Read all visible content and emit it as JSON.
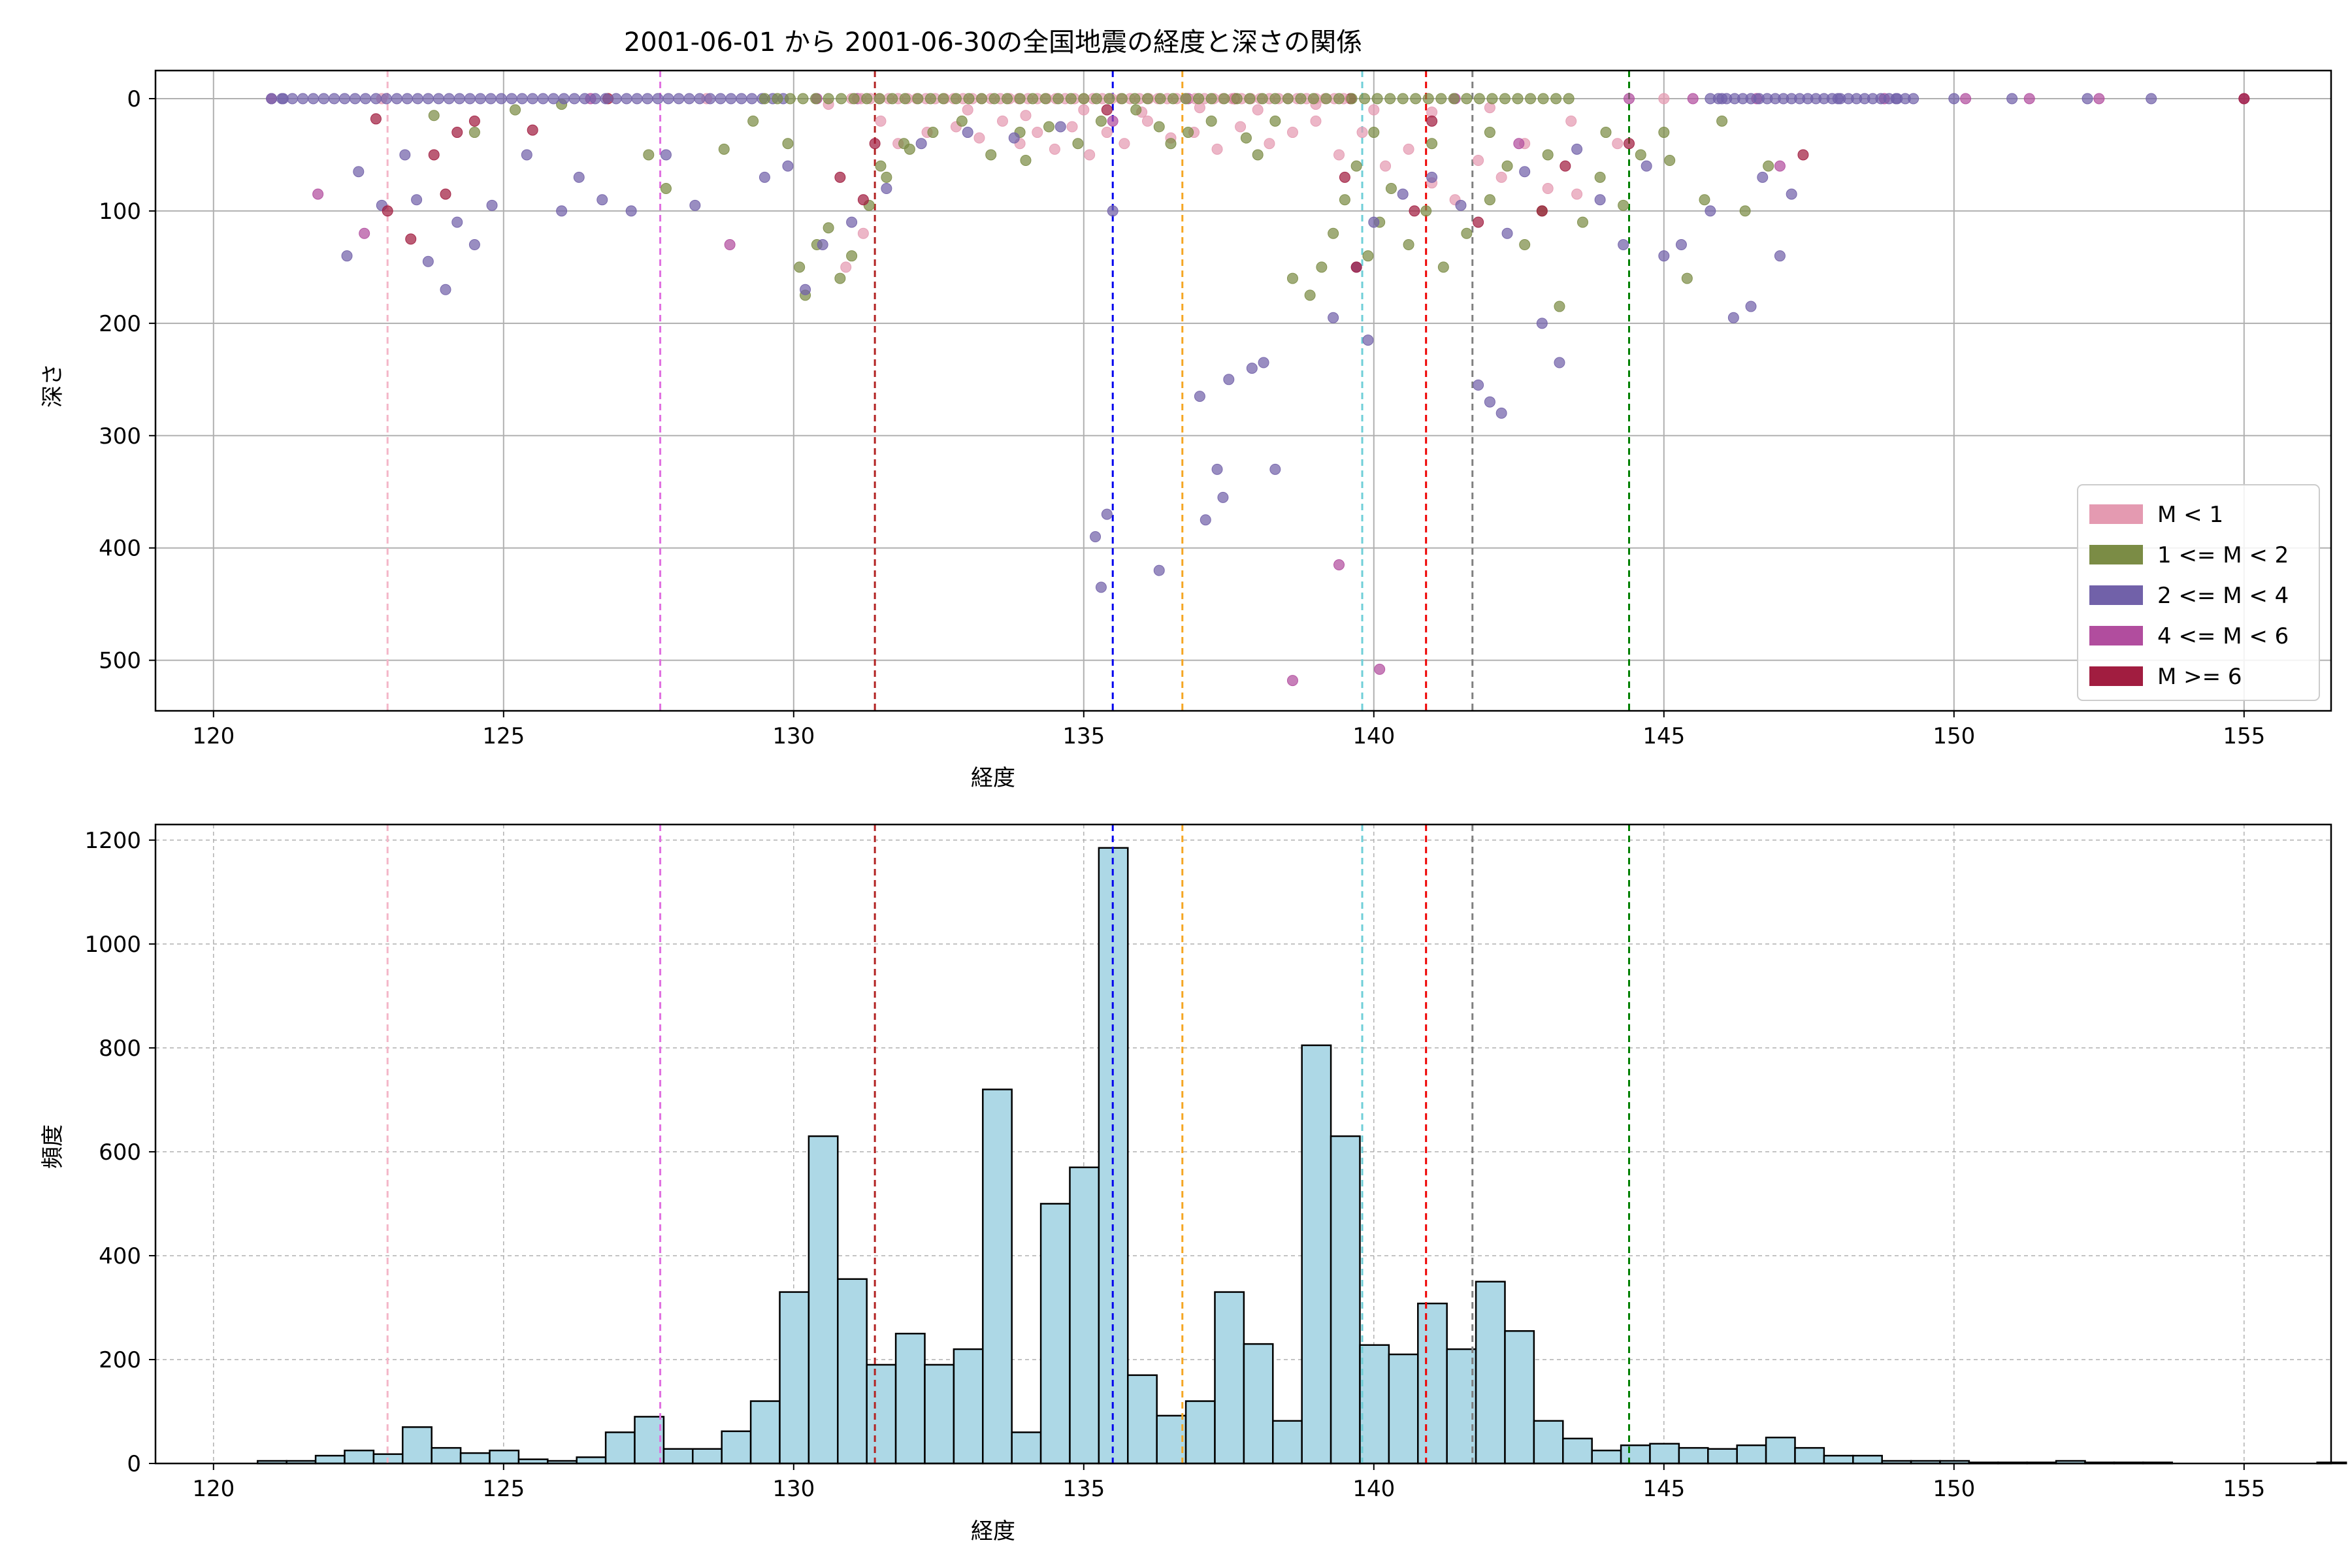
{
  "chart_data": [
    {
      "type": "scatter",
      "title": "2001-06-01 から 2001-06-30の全国地震の経度と深さの関係",
      "xlabel": "経度",
      "ylabel": "深さ",
      "xlim": [
        119,
        156.5
      ],
      "ylim": [
        545,
        -25
      ],
      "y_inverted": true,
      "grid": true,
      "xticks": [
        120,
        125,
        130,
        135,
        140,
        145,
        150,
        155
      ],
      "yticks": [
        0,
        100,
        200,
        300,
        400,
        500
      ],
      "legend_position": "lower-right",
      "series": [
        {
          "name": "M < 1",
          "color": "#e49ab1",
          "points": [
            [
              122.9,
              0
            ],
            [
              128.5,
              0
            ],
            [
              130.6,
              5
            ],
            [
              131.5,
              20
            ],
            [
              131.8,
              40
            ],
            [
              132.3,
              30
            ],
            [
              132.8,
              25
            ],
            [
              133.2,
              35
            ],
            [
              133.6,
              20
            ],
            [
              133.9,
              40
            ],
            [
              134.2,
              30
            ],
            [
              134.5,
              45
            ],
            [
              134.8,
              25
            ],
            [
              135.1,
              50
            ],
            [
              135.4,
              30
            ],
            [
              135.7,
              40
            ],
            [
              136.1,
              20
            ],
            [
              136.5,
              35
            ],
            [
              136.9,
              30
            ],
            [
              137.3,
              45
            ],
            [
              137.7,
              25
            ],
            [
              138.2,
              40
            ],
            [
              138.6,
              30
            ],
            [
              139.0,
              20
            ],
            [
              139.4,
              50
            ],
            [
              139.8,
              30
            ],
            [
              140.2,
              60
            ],
            [
              140.6,
              45
            ],
            [
              141.0,
              75
            ],
            [
              141.4,
              90
            ],
            [
              141.8,
              55
            ],
            [
              142.2,
              70
            ],
            [
              142.6,
              40
            ],
            [
              143.0,
              80
            ],
            [
              143.4,
              20
            ],
            [
              131.2,
              120
            ],
            [
              130.9,
              150
            ],
            [
              133.0,
              10
            ],
            [
              134.0,
              15
            ],
            [
              135.0,
              10
            ],
            [
              136.0,
              12
            ],
            [
              137.0,
              8
            ],
            [
              138.0,
              10
            ],
            [
              139.0,
              5
            ],
            [
              140.0,
              10
            ],
            [
              141.0,
              12
            ],
            [
              142.0,
              8
            ],
            [
              143.5,
              85
            ],
            [
              144.2,
              40
            ],
            [
              145.0,
              0
            ]
          ]
        },
        {
          "name": "1 <= M < 2",
          "color": "#7b8c45",
          "points": [
            [
              123.8,
              15
            ],
            [
              124.5,
              30
            ],
            [
              125.2,
              10
            ],
            [
              126.0,
              5
            ],
            [
              127.5,
              50
            ],
            [
              127.8,
              80
            ],
            [
              128.8,
              45
            ],
            [
              129.3,
              20
            ],
            [
              129.9,
              40
            ],
            [
              130.1,
              150
            ],
            [
              130.2,
              175
            ],
            [
              130.4,
              130
            ],
            [
              130.6,
              115
            ],
            [
              130.8,
              160
            ],
            [
              131.0,
              140
            ],
            [
              131.3,
              95
            ],
            [
              131.6,
              70
            ],
            [
              131.9,
              40
            ],
            [
              132.4,
              30
            ],
            [
              132.9,
              20
            ],
            [
              133.4,
              50
            ],
            [
              133.9,
              30
            ],
            [
              134.4,
              25
            ],
            [
              134.9,
              40
            ],
            [
              135.3,
              20
            ],
            [
              135.9,
              10
            ],
            [
              136.3,
              25
            ],
            [
              136.8,
              30
            ],
            [
              137.2,
              20
            ],
            [
              137.8,
              35
            ],
            [
              138.3,
              20
            ],
            [
              138.6,
              160
            ],
            [
              138.9,
              175
            ],
            [
              139.1,
              150
            ],
            [
              139.3,
              120
            ],
            [
              139.5,
              90
            ],
            [
              139.7,
              60
            ],
            [
              139.9,
              140
            ],
            [
              140.1,
              110
            ],
            [
              140.3,
              80
            ],
            [
              140.6,
              130
            ],
            [
              140.9,
              100
            ],
            [
              141.2,
              150
            ],
            [
              141.6,
              120
            ],
            [
              142.0,
              90
            ],
            [
              142.3,
              60
            ],
            [
              142.6,
              130
            ],
            [
              142.9,
              100
            ],
            [
              143.2,
              185
            ],
            [
              143.6,
              110
            ],
            [
              143.9,
              70
            ],
            [
              144.3,
              95
            ],
            [
              144.6,
              50
            ],
            [
              145.1,
              55
            ],
            [
              145.4,
              160
            ],
            [
              145.7,
              90
            ],
            [
              146.0,
              20
            ],
            [
              146.4,
              100
            ],
            [
              146.8,
              60
            ],
            [
              131.5,
              60
            ],
            [
              132.0,
              45
            ],
            [
              134.0,
              55
            ],
            [
              136.5,
              40
            ],
            [
              138.0,
              50
            ],
            [
              140.0,
              30
            ],
            [
              141.0,
              40
            ],
            [
              142.0,
              30
            ],
            [
              143.0,
              50
            ],
            [
              144.0,
              30
            ],
            [
              145.0,
              30
            ]
          ]
        },
        {
          "name": "2 <= M < 4",
          "color": "#7161a9",
          "points": [
            [
              121.2,
              0
            ],
            [
              122.3,
              140
            ],
            [
              122.5,
              65
            ],
            [
              122.9,
              95
            ],
            [
              123.3,
              50
            ],
            [
              123.5,
              90
            ],
            [
              123.7,
              145
            ],
            [
              124.0,
              170
            ],
            [
              124.2,
              110
            ],
            [
              124.5,
              130
            ],
            [
              124.8,
              95
            ],
            [
              125.4,
              50
            ],
            [
              126.0,
              100
            ],
            [
              126.3,
              70
            ],
            [
              126.7,
              90
            ],
            [
              127.2,
              100
            ],
            [
              127.8,
              50
            ],
            [
              128.3,
              95
            ],
            [
              129.5,
              70
            ],
            [
              129.9,
              60
            ],
            [
              130.2,
              170
            ],
            [
              130.5,
              130
            ],
            [
              131.0,
              110
            ],
            [
              131.6,
              80
            ],
            [
              132.2,
              40
            ],
            [
              133.0,
              30
            ],
            [
              133.8,
              35
            ],
            [
              134.6,
              25
            ],
            [
              135.2,
              390
            ],
            [
              135.3,
              435
            ],
            [
              135.4,
              370
            ],
            [
              135.5,
              100
            ],
            [
              136.3,
              420
            ],
            [
              137.1,
              375
            ],
            [
              137.3,
              330
            ],
            [
              137.4,
              355
            ],
            [
              137.0,
              265
            ],
            [
              137.5,
              250
            ],
            [
              137.9,
              240
            ],
            [
              138.1,
              235
            ],
            [
              138.3,
              330
            ],
            [
              139.3,
              195
            ],
            [
              139.7,
              150
            ],
            [
              139.9,
              215
            ],
            [
              140.0,
              110
            ],
            [
              140.5,
              85
            ],
            [
              141.0,
              70
            ],
            [
              141.5,
              95
            ],
            [
              141.8,
              255
            ],
            [
              142.0,
              270
            ],
            [
              142.2,
              280
            ],
            [
              142.3,
              120
            ],
            [
              142.6,
              65
            ],
            [
              142.9,
              200
            ],
            [
              143.2,
              235
            ],
            [
              143.5,
              45
            ],
            [
              143.9,
              90
            ],
            [
              144.3,
              130
            ],
            [
              144.7,
              60
            ],
            [
              145.0,
              140
            ],
            [
              145.3,
              130
            ],
            [
              145.8,
              100
            ],
            [
              146.2,
              195
            ],
            [
              146.5,
              185
            ],
            [
              146.7,
              70
            ],
            [
              147.0,
              140
            ],
            [
              147.2,
              85
            ],
            [
              146.0,
              0
            ],
            [
              148.0,
              0
            ],
            [
              149.0,
              0
            ],
            [
              150.0,
              0
            ],
            [
              151.0,
              0
            ],
            [
              152.3,
              0
            ],
            [
              153.4,
              0
            ]
          ]
        },
        {
          "name": "4 <= M < 6",
          "color": "#b14d9e",
          "points": [
            [
              121.0,
              0
            ],
            [
              121.8,
              85
            ],
            [
              122.6,
              120
            ],
            [
              126.5,
              0
            ],
            [
              128.9,
              130
            ],
            [
              130.4,
              0
            ],
            [
              131.1,
              0
            ],
            [
              135.5,
              20
            ],
            [
              136.8,
              0
            ],
            [
              138.6,
              518
            ],
            [
              139.4,
              415
            ],
            [
              140.1,
              508
            ],
            [
              141.4,
              0
            ],
            [
              142.5,
              40
            ],
            [
              144.4,
              0
            ],
            [
              145.5,
              0
            ],
            [
              146.6,
              0
            ],
            [
              147.0,
              60
            ],
            [
              148.8,
              0
            ],
            [
              150.2,
              0
            ],
            [
              151.3,
              0
            ],
            [
              152.5,
              0
            ],
            [
              155.0,
              0
            ]
          ]
        },
        {
          "name": "M >= 6",
          "color": "#a11d40",
          "points": [
            [
              122.8,
              18
            ],
            [
              123.0,
              100
            ],
            [
              123.4,
              125
            ],
            [
              123.8,
              50
            ],
            [
              124.0,
              85
            ],
            [
              124.2,
              30
            ],
            [
              124.5,
              20
            ],
            [
              125.5,
              28
            ],
            [
              126.8,
              0
            ],
            [
              130.8,
              70
            ],
            [
              131.2,
              90
            ],
            [
              131.4,
              40
            ],
            [
              135.4,
              10
            ],
            [
              137.6,
              0
            ],
            [
              139.5,
              70
            ],
            [
              139.6,
              0
            ],
            [
              139.7,
              150
            ],
            [
              140.7,
              100
            ],
            [
              141.0,
              20
            ],
            [
              141.8,
              110
            ],
            [
              142.9,
              100
            ],
            [
              143.3,
              60
            ],
            [
              144.4,
              40
            ],
            [
              147.4,
              50
            ],
            [
              155.0,
              0
            ]
          ]
        }
      ],
      "reference_lines": [
        {
          "x": 123.0,
          "color": "#f4b6c8"
        },
        {
          "x": 127.7,
          "color": "#e070e0"
        },
        {
          "x": 131.4,
          "color": "#b22222"
        },
        {
          "x": 135.5,
          "color": "#0000ee"
        },
        {
          "x": 136.7,
          "color": "#f5a623"
        },
        {
          "x": 139.8,
          "color": "#6fcfd8"
        },
        {
          "x": 140.9,
          "color": "#ee0000"
        },
        {
          "x": 141.7,
          "color": "#808080"
        },
        {
          "x": 144.4,
          "color": "#008000"
        }
      ]
    },
    {
      "type": "bar",
      "title": "",
      "xlabel": "経度",
      "ylabel": "頻度",
      "xlim": [
        119,
        156.5
      ],
      "ylim": [
        0,
        1230
      ],
      "grid": true,
      "grid_style": "dashed",
      "xticks": [
        120,
        125,
        130,
        135,
        140,
        145,
        150,
        155
      ],
      "yticks": [
        0,
        200,
        400,
        600,
        800,
        1000,
        1200
      ],
      "bar_color": "#add8e6",
      "bin_start": 120.76,
      "bin_width": 0.5,
      "values": [
        5,
        5,
        15,
        25,
        18,
        70,
        30,
        20,
        25,
        8,
        5,
        12,
        60,
        90,
        28,
        28,
        62,
        120,
        330,
        630,
        355,
        190,
        250,
        190,
        220,
        720,
        60,
        500,
        570,
        1185,
        170,
        92,
        120,
        330,
        230,
        82,
        805,
        630,
        228,
        210,
        308,
        220,
        350,
        255,
        82,
        48,
        25,
        35,
        38,
        30,
        28,
        35,
        50,
        30,
        15,
        15,
        5,
        5,
        5,
        2,
        2,
        2,
        5,
        2,
        2,
        2,
        0,
        0,
        0,
        0,
        0,
        2
      ]
    }
  ]
}
